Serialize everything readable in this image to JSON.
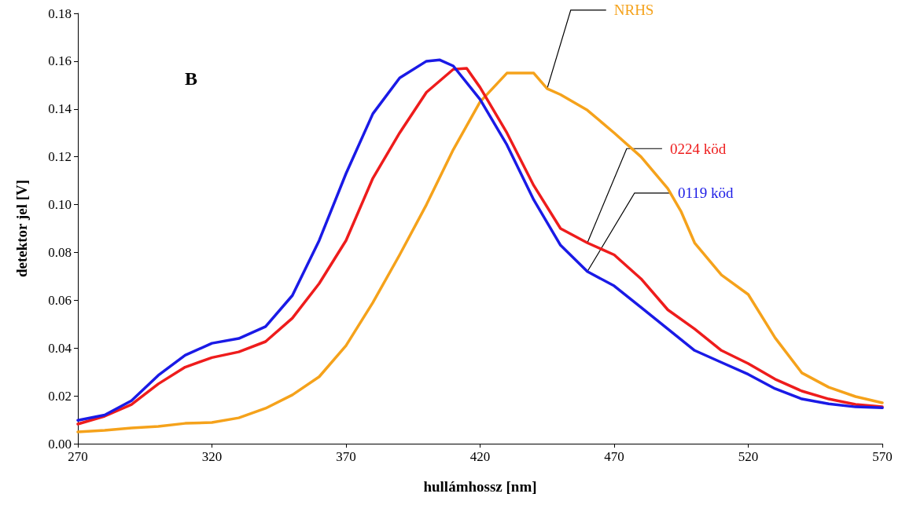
{
  "chart_data": {
    "type": "line",
    "xlabel": "hullámhossz [nm]",
    "ylabel": "detektor jel [V]",
    "annotations": [
      "B"
    ],
    "grid": false,
    "legend": false,
    "marker": "none",
    "line_style": "solid",
    "xlim": [
      270,
      570
    ],
    "xticks": [
      270,
      320,
      370,
      420,
      470,
      520,
      570
    ],
    "ylim": [
      0,
      0.18
    ],
    "yticks": [
      {
        "value": 0,
        "label": "0.00"
      },
      {
        "value": 0.02,
        "label": "0.02"
      },
      {
        "value": 0.04,
        "label": "0.04"
      },
      {
        "value": 0.06,
        "label": "0.06"
      },
      {
        "value": 0.08,
        "label": "0.08"
      },
      {
        "value": 0.1,
        "label": "0.10"
      },
      {
        "value": 0.12,
        "label": "0.12"
      },
      {
        "value": 0.14,
        "label": "0.14"
      },
      {
        "value": 0.16,
        "label": "0.16"
      },
      {
        "value": 0.18,
        "label": "0.18"
      }
    ],
    "series": [
      {
        "name": "NRHS",
        "color": "#f5a21b",
        "x": [
          270,
          280,
          290,
          300,
          310,
          320,
          330,
          340,
          350,
          360,
          370,
          380,
          390,
          400,
          410,
          420,
          430,
          440,
          445,
          450,
          460,
          470,
          480,
          490,
          495,
          500,
          510,
          520,
          530,
          540,
          550,
          560,
          570
        ],
        "values": [
          0.0049,
          0.0056,
          0.0066,
          0.0072,
          0.0085,
          0.0089,
          0.0108,
          0.0148,
          0.0204,
          0.028,
          0.041,
          0.059,
          0.079,
          0.1,
          0.123,
          0.143,
          0.155,
          0.155,
          0.1485,
          0.146,
          0.1395,
          0.13,
          0.12,
          0.1067,
          0.097,
          0.084,
          0.0706,
          0.0624,
          0.0443,
          0.0296,
          0.0236,
          0.0197,
          0.0171
        ]
      },
      {
        "name": "0224 köd",
        "color": "#ee1c1c",
        "x": [
          270,
          280,
          290,
          300,
          310,
          320,
          330,
          340,
          350,
          360,
          370,
          380,
          390,
          400,
          410,
          415,
          420,
          430,
          440,
          450,
          460,
          470,
          480,
          490,
          500,
          510,
          520,
          530,
          540,
          550,
          560,
          570
        ],
        "values": [
          0.0082,
          0.0115,
          0.0164,
          0.025,
          0.032,
          0.036,
          0.0384,
          0.0427,
          0.0525,
          0.067,
          0.085,
          0.111,
          0.13,
          0.147,
          0.1566,
          0.157,
          0.149,
          0.13,
          0.108,
          0.09,
          0.084,
          0.079,
          0.069,
          0.056,
          0.048,
          0.039,
          0.0335,
          0.027,
          0.022,
          0.0187,
          0.0164,
          0.0154
        ]
      },
      {
        "name": "0119 köd",
        "color": "#1a1ae6",
        "x": [
          270,
          280,
          290,
          300,
          310,
          320,
          330,
          340,
          350,
          360,
          370,
          380,
          390,
          400,
          405,
          410,
          420,
          430,
          440,
          450,
          460,
          470,
          480,
          490,
          500,
          510,
          520,
          530,
          540,
          550,
          560,
          570
        ],
        "values": [
          0.0098,
          0.012,
          0.018,
          0.0286,
          0.037,
          0.042,
          0.044,
          0.049,
          0.062,
          0.085,
          0.113,
          0.138,
          0.153,
          0.16,
          0.1605,
          0.158,
          0.144,
          0.125,
          0.102,
          0.083,
          0.072,
          0.066,
          0.057,
          0.048,
          0.039,
          0.034,
          0.029,
          0.023,
          0.0187,
          0.0167,
          0.0154,
          0.015
        ]
      }
    ]
  }
}
